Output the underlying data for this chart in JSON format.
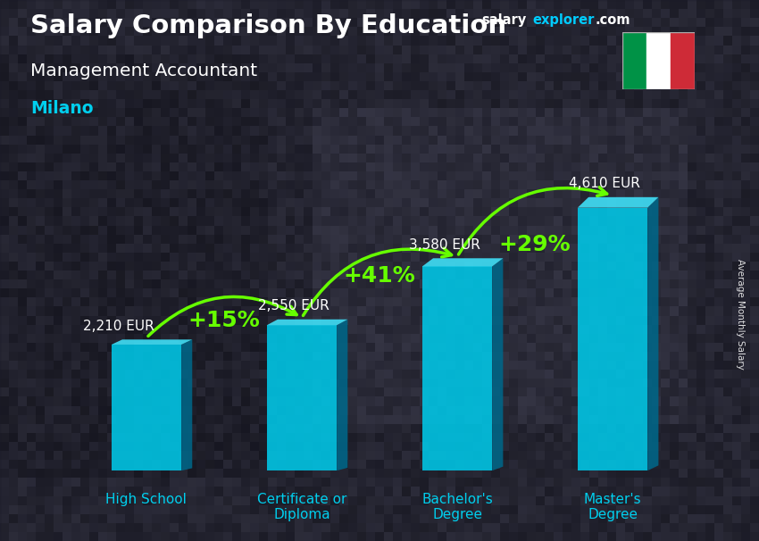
{
  "title_main": "Salary Comparison By Education",
  "title_sub": "Management Accountant",
  "city": "Milano",
  "categories": [
    "High School",
    "Certificate or\nDiploma",
    "Bachelor's\nDegree",
    "Master's\nDegree"
  ],
  "values": [
    2210,
    2550,
    3580,
    4610
  ],
  "value_labels": [
    "2,210 EUR",
    "2,550 EUR",
    "3,580 EUR",
    "4,610 EUR"
  ],
  "pct_labels": [
    "+15%",
    "+41%",
    "+29%"
  ],
  "bar_color_main": "#00c8e8",
  "bar_color_top": "#40e0f8",
  "bar_color_side": "#0088aa",
  "bar_color_right": "#006688",
  "text_color_white": "#ffffff",
  "text_color_cyan": "#00cfee",
  "text_color_green": "#66ff00",
  "ylabel": "Average Monthly Salary",
  "site_salary": "salary",
  "site_explorer": "explorer",
  "site_com": ".com",
  "ylim_max": 5500,
  "bar_width": 0.45,
  "italy_flag_green": "#009246",
  "italy_flag_white": "#ffffff",
  "italy_flag_red": "#ce2b37",
  "bg_color": "#2a2a3a",
  "arrow_color": "#66ff00",
  "arrow_lw": 2.5,
  "value_label_color": "#ffffff",
  "pct_fontsize": 18,
  "value_fontsize": 11,
  "cat_fontsize": 11
}
